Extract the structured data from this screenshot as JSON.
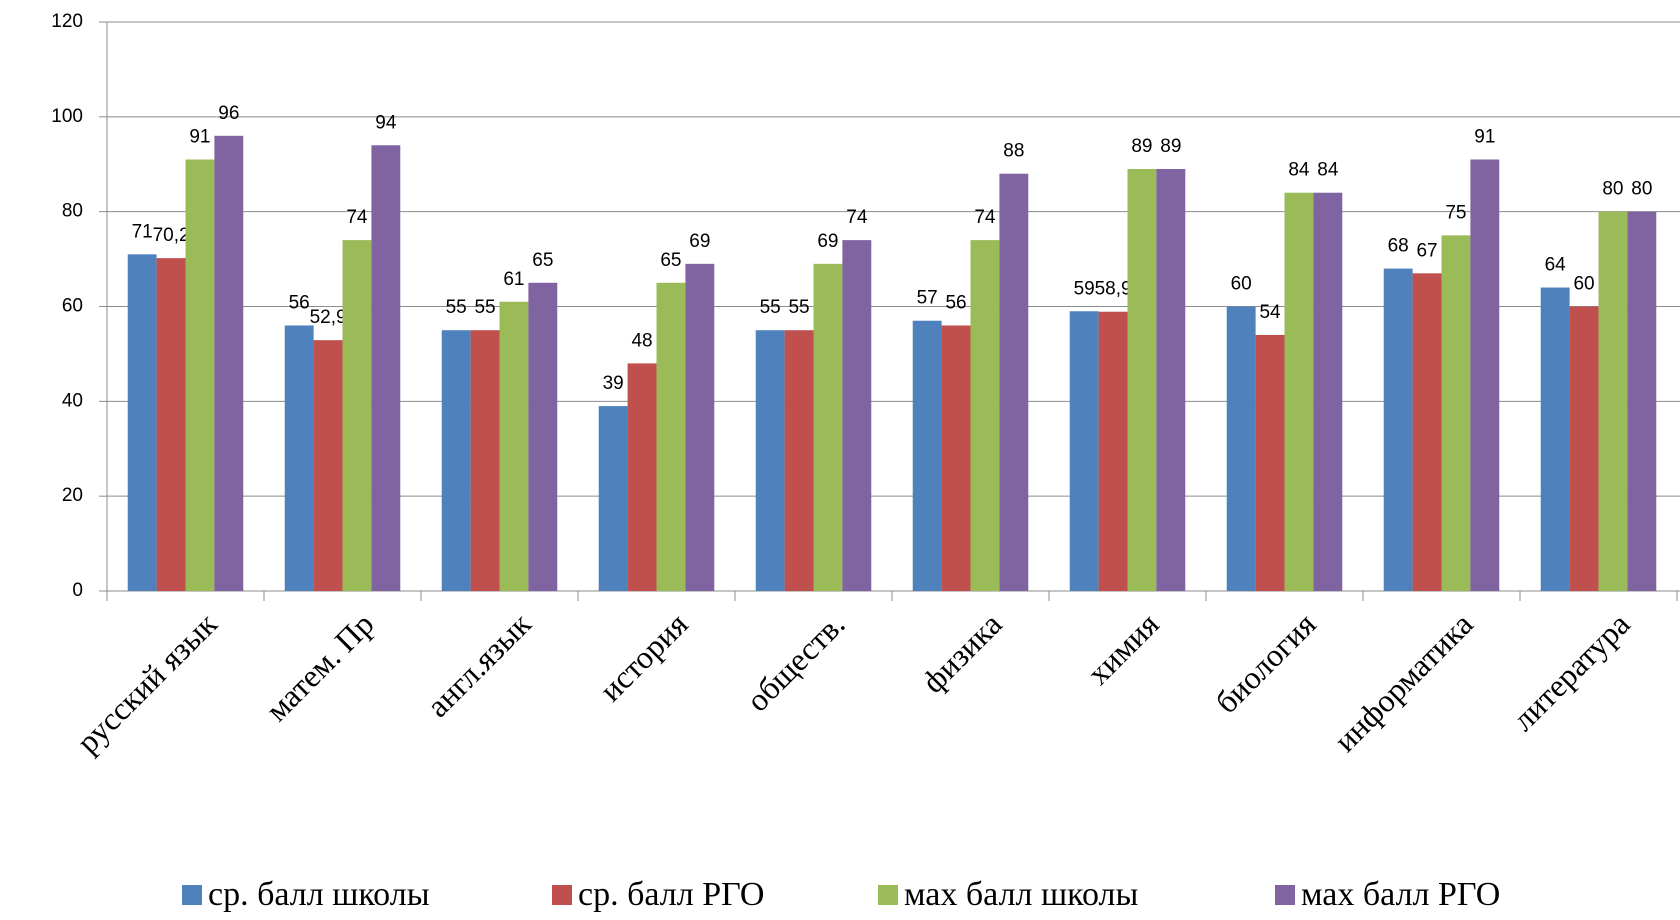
{
  "chart_data": {
    "type": "bar",
    "categories": [
      "русский язык",
      "матем. Пр",
      "англ.язык",
      "история",
      "обществ.",
      "физика",
      "химия",
      "биология",
      "информатика",
      "литература"
    ],
    "series": [
      {
        "name": "ср. балл школы",
        "color": "#4f81bd",
        "values": [
          71,
          56,
          55,
          39,
          55,
          57,
          59,
          60,
          68,
          64
        ]
      },
      {
        "name": "ср. балл РГО",
        "color": "#c0504d",
        "values": [
          70.2,
          52.9,
          55,
          48,
          55,
          56,
          58.9,
          54,
          67,
          60
        ],
        "value_labels": [
          "70,2",
          "52,9",
          "55",
          "48",
          "55",
          "56",
          "58,9",
          "54",
          "67",
          "60"
        ]
      },
      {
        "name": "мах балл школы",
        "color": "#9bbb59",
        "values": [
          91,
          74,
          61,
          65,
          69,
          74,
          89,
          84,
          75,
          80
        ]
      },
      {
        "name": "мах балл РГО",
        "color": "#8064a2",
        "values": [
          96,
          94,
          65,
          69,
          74,
          88,
          89,
          84,
          91,
          80
        ]
      }
    ],
    "ylim": [
      0,
      120
    ],
    "yticks": [
      0,
      20,
      40,
      60,
      80,
      100,
      120
    ],
    "grid": true,
    "legend": "bottom"
  }
}
